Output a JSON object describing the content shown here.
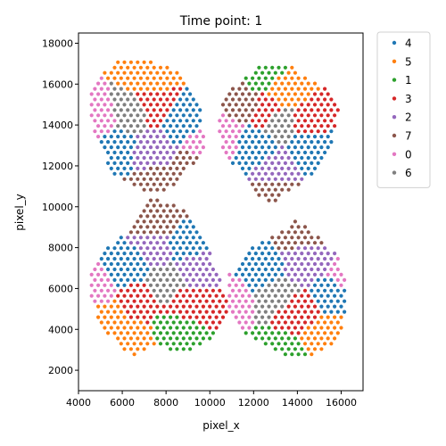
{
  "chart_data": {
    "type": "scatter",
    "title": "Time point: 1",
    "xlabel": "pixel_x",
    "ylabel": "pixel_y",
    "xlim": [
      4000,
      17000
    ],
    "ylim": [
      1000,
      18500
    ],
    "xticks": [
      4000,
      6000,
      8000,
      10000,
      12000,
      14000,
      16000
    ],
    "yticks": [
      2000,
      4000,
      6000,
      8000,
      10000,
      12000,
      14000,
      16000,
      18000
    ],
    "grid": false,
    "legend_position": "outside-right",
    "spot_spacing": 300,
    "legend": [
      {
        "name": "4",
        "color": "#1f77b4"
      },
      {
        "name": "5",
        "color": "#ff7f0e"
      },
      {
        "name": "1",
        "color": "#2ca02c"
      },
      {
        "name": "3",
        "color": "#d62728"
      },
      {
        "name": "2",
        "color": "#9467bd"
      },
      {
        "name": "7",
        "color": "#8c564b"
      },
      {
        "name": "0",
        "color": "#e377c2"
      },
      {
        "name": "6",
        "color": "#7f7f7f"
      }
    ],
    "tissue_regions": [
      {
        "name": "upper-left",
        "polygon": [
          [
            5800,
            17100
          ],
          [
            7300,
            17100
          ],
          [
            8700,
            16600
          ],
          [
            9200,
            15800
          ],
          [
            9600,
            14600
          ],
          [
            9800,
            13000
          ],
          [
            9200,
            12000
          ],
          [
            8400,
            11000
          ],
          [
            7800,
            10600
          ],
          [
            6800,
            10800
          ],
          [
            5600,
            11600
          ],
          [
            4900,
            13000
          ],
          [
            4500,
            14400
          ],
          [
            4600,
            15800
          ],
          [
            5100,
            16600
          ]
        ],
        "clusters": [
          {
            "label": "5",
            "center": [
              7200,
              16300
            ]
          },
          {
            "label": "6",
            "center": [
              6400,
              14600
            ]
          },
          {
            "label": "3",
            "center": [
              7400,
              15000
            ]
          },
          {
            "label": "4",
            "center": [
              8700,
              14100
            ]
          },
          {
            "label": "4",
            "center": [
              5700,
              12900
            ]
          },
          {
            "label": "2",
            "center": [
              7400,
              12800
            ]
          },
          {
            "label": "0",
            "center": [
              4900,
              14300
            ]
          },
          {
            "label": "0",
            "center": [
              9600,
              13100
            ]
          },
          {
            "label": "7",
            "center": [
              7600,
              11000
            ]
          },
          {
            "label": "7",
            "center": [
              9200,
              12000
            ]
          }
        ]
      },
      {
        "name": "upper-right",
        "polygon": [
          [
            12500,
            17000
          ],
          [
            13800,
            16900
          ],
          [
            14400,
            16300
          ],
          [
            15300,
            15800
          ],
          [
            15900,
            14800
          ],
          [
            15600,
            13000
          ],
          [
            15000,
            11800
          ],
          [
            14000,
            11000
          ],
          [
            12700,
            10000
          ],
          [
            11600,
            11400
          ],
          [
            10600,
            12600
          ],
          [
            10300,
            14000
          ],
          [
            10700,
            15400
          ],
          [
            11500,
            16300
          ]
        ],
        "clusters": [
          {
            "label": "1",
            "center": [
              12300,
              16300
            ]
          },
          {
            "label": "5",
            "center": [
              13400,
              15500
            ]
          },
          {
            "label": "7",
            "center": [
              11600,
              15200
            ]
          },
          {
            "label": "3",
            "center": [
              12700,
              14800
            ]
          },
          {
            "label": "3",
            "center": [
              14400,
              14200
            ]
          },
          {
            "label": "6",
            "center": [
              13300,
              14200
            ]
          },
          {
            "label": "4",
            "center": [
              12000,
              12800
            ]
          },
          {
            "label": "4",
            "center": [
              14600,
              12900
            ]
          },
          {
            "label": "2",
            "center": [
              13000,
              11800
            ]
          },
          {
            "label": "0",
            "center": [
              10600,
              13300
            ]
          },
          {
            "label": "7",
            "center": [
              13000,
              10400
            ]
          }
        ]
      },
      {
        "name": "lower-left",
        "polygon": [
          [
            7300,
            10400
          ],
          [
            8800,
            10000
          ],
          [
            9300,
            9000
          ],
          [
            9800,
            8300
          ],
          [
            10200,
            7300
          ],
          [
            10800,
            5400
          ],
          [
            10700,
            4200
          ],
          [
            9800,
            3300
          ],
          [
            8800,
            2900
          ],
          [
            7400,
            3200
          ],
          [
            6600,
            2600
          ],
          [
            6000,
            3000
          ],
          [
            5000,
            4200
          ],
          [
            4600,
            5400
          ],
          [
            4600,
            6800
          ],
          [
            5400,
            8100
          ],
          [
            6500,
            9000
          ]
        ],
        "clusters": [
          {
            "label": "7",
            "center": [
              7700,
              9300
            ]
          },
          {
            "label": "2",
            "center": [
              7600,
              8000
            ]
          },
          {
            "label": "2",
            "center": [
              9300,
              6800
            ]
          },
          {
            "label": "4",
            "center": [
              6200,
              7000
            ]
          },
          {
            "label": "4",
            "center": [
              8700,
              8200
            ]
          },
          {
            "label": "6",
            "center": [
              8000,
              6300
            ]
          },
          {
            "label": "3",
            "center": [
              6800,
              5500
            ]
          },
          {
            "label": "3",
            "center": [
              9100,
              5400
            ]
          },
          {
            "label": "5",
            "center": [
              5400,
              4500
            ]
          },
          {
            "label": "5",
            "center": [
              6500,
              3300
            ]
          },
          {
            "label": "0",
            "center": [
              4800,
              6000
            ]
          },
          {
            "label": "1",
            "center": [
              8400,
              3700
            ]
          }
        ]
      },
      {
        "name": "lower-right",
        "polygon": [
          [
            14000,
            9400
          ],
          [
            14800,
            8700
          ],
          [
            15700,
            7800
          ],
          [
            16300,
            6500
          ],
          [
            16300,
            4700
          ],
          [
            15600,
            3200
          ],
          [
            14800,
            2700
          ],
          [
            13800,
            2600
          ],
          [
            12600,
            3100
          ],
          [
            11400,
            3900
          ],
          [
            10900,
            5000
          ],
          [
            10900,
            6700
          ],
          [
            11600,
            7800
          ],
          [
            12600,
            8400
          ]
        ],
        "clusters": [
          {
            "label": "7",
            "center": [
              14300,
              8800
            ]
          },
          {
            "label": "2",
            "center": [
              14500,
              7300
            ]
          },
          {
            "label": "4",
            "center": [
              12300,
              6800
            ]
          },
          {
            "label": "4",
            "center": [
              15700,
              5800
            ]
          },
          {
            "label": "6",
            "center": [
              12900,
              5600
            ]
          },
          {
            "label": "3",
            "center": [
              13900,
              4700
            ]
          },
          {
            "label": "5",
            "center": [
              15200,
              3700
            ]
          },
          {
            "label": "1",
            "center": [
              13200,
              2900
            ]
          },
          {
            "label": "0",
            "center": [
              11000,
              5500
            ]
          },
          {
            "label": "0",
            "center": [
              16200,
              6400
            ]
          }
        ]
      }
    ]
  }
}
